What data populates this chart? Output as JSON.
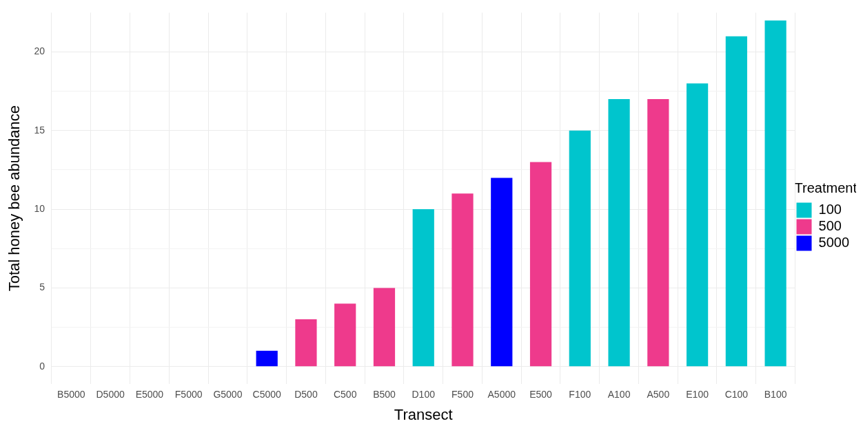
{
  "chart_data": {
    "type": "bar",
    "xlabel": "Transect",
    "ylabel": "Total honey bee abundance",
    "legend_title": "Treatment",
    "legend": "right",
    "grid": true,
    "categories": [
      "B5000",
      "D5000",
      "E5000",
      "F5000",
      "G5000",
      "C5000",
      "D500",
      "C500",
      "B500",
      "D100",
      "F500",
      "A5000",
      "E500",
      "F100",
      "A100",
      "A500",
      "E100",
      "C100",
      "B100"
    ],
    "series": [
      {
        "name": "100",
        "color": "#00c5cd",
        "values": [
          null,
          null,
          null,
          null,
          null,
          null,
          null,
          null,
          null,
          10,
          null,
          null,
          null,
          15,
          17,
          null,
          18,
          21,
          22
        ]
      },
      {
        "name": "500",
        "color": "#ee3a8c",
        "values": [
          null,
          null,
          null,
          null,
          null,
          null,
          3,
          4,
          5,
          null,
          11,
          null,
          13,
          null,
          null,
          17,
          null,
          null,
          null
        ]
      },
      {
        "name": "5000",
        "color": "#0000ff",
        "values": [
          0,
          0,
          0,
          0,
          0,
          1,
          null,
          null,
          null,
          null,
          null,
          12,
          null,
          null,
          null,
          null,
          null,
          null,
          null
        ]
      }
    ],
    "ylim": [
      -1.1,
      22.5
    ],
    "yticks": [
      0,
      {
        "value": 2.5,
        "label": null
      },
      5,
      {
        "value": 7.5,
        "label": null
      },
      10,
      {
        "value": 12.5,
        "label": null
      },
      15,
      {
        "value": 17.5,
        "label": null
      },
      20
    ]
  }
}
